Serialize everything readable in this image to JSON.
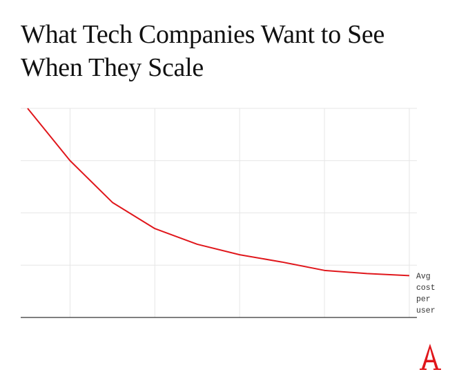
{
  "title": "What Tech Companies Want to See When They Scale",
  "chart_data": {
    "type": "line",
    "title": "What Tech Companies Want to See When They Scale",
    "xlabel": "",
    "ylabel": "",
    "x": [
      0,
      1,
      2,
      3,
      4,
      5,
      6,
      7,
      8,
      9
    ],
    "series": [
      {
        "name": "Avg cost per user",
        "values": [
          100,
          75,
          55,
          42.5,
          35,
          30,
          26.5,
          22.5,
          21,
          20
        ],
        "color": "#e0161b"
      }
    ],
    "xlim": [
      0,
      9
    ],
    "ylim": [
      0,
      100
    ],
    "grid": true,
    "vertical_gridlines": [
      1,
      3,
      5,
      7,
      9
    ],
    "horizontal_gridlines": [
      25,
      50,
      75,
      100
    ],
    "series_label_lines": [
      "Avg",
      "cost",
      "per",
      "user"
    ],
    "series_label_position": "end-of-line"
  },
  "logo": {
    "name": "the-atlantic-logo",
    "color": "#e0161b"
  }
}
